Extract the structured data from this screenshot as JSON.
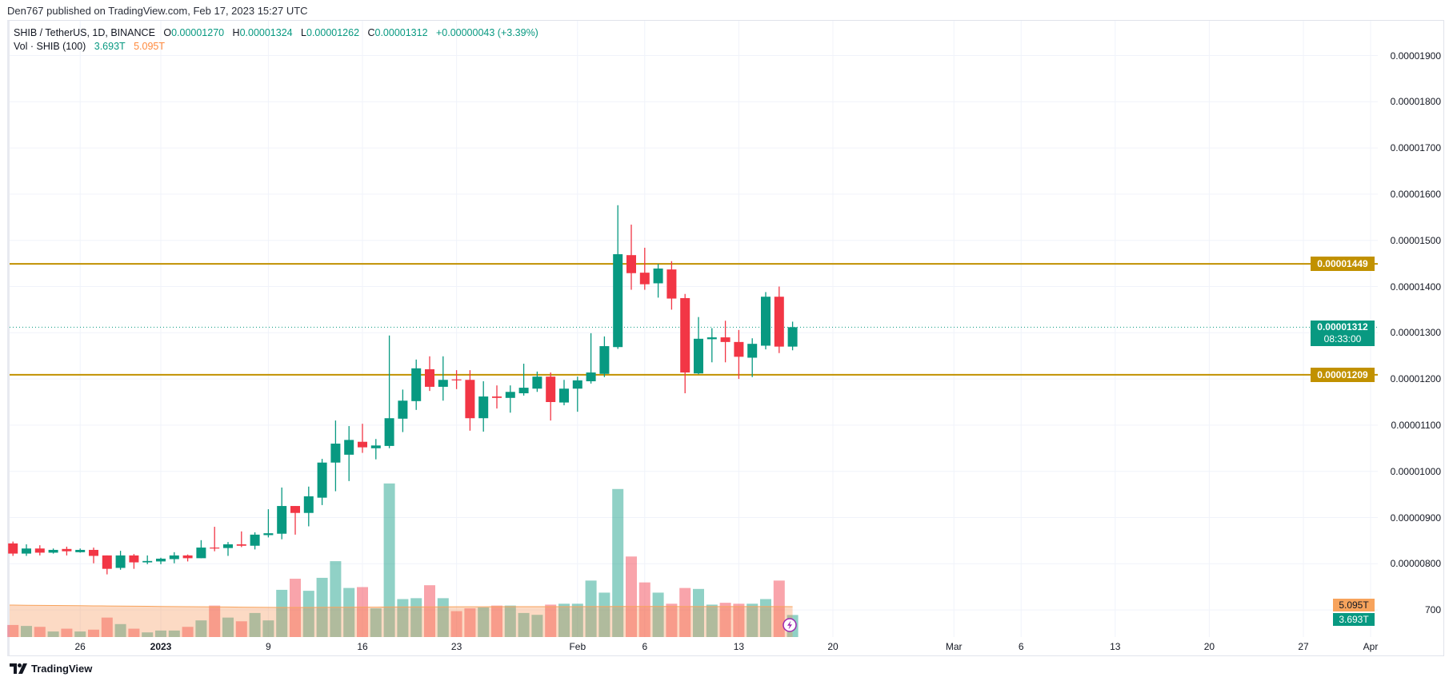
{
  "published": "Den767 published on TradingView.com, Feb 17, 2023 15:27 UTC",
  "legend": {
    "symbol": "SHIB / TetherUS, 1D, BINANCE",
    "o_label": "O",
    "o_value": "0.00001270",
    "h_label": "H",
    "h_value": "0.00001324",
    "l_label": "L",
    "l_value": "0.00001262",
    "c_label": "C",
    "c_value": "0.00001312",
    "change": "+0.00000043 (+3.39%)",
    "vol_label": "Vol · SHIB (100)",
    "vol_value": "3.693T",
    "vol_ma_value": "5.095T"
  },
  "colors": {
    "up": "#089981",
    "down": "#f23645",
    "level_line": "#c19100",
    "vol_ma": "#f7a35c",
    "alert": "#9c27b0"
  },
  "price_axis": {
    "labels": [
      "0.00001900",
      "0.00001800",
      "0.00001700",
      "0.00001600",
      "0.00001500",
      "0.00001400",
      "0.00001300",
      "0.00001200",
      "0.00001100",
      "0.00001000",
      "0.00000900",
      "0.00000800",
      "700"
    ],
    "levels": [
      {
        "value": 1.449e-05,
        "label": "0.00001449"
      },
      {
        "value": 1.209e-05,
        "label": "0.00001209"
      }
    ],
    "last_price": {
      "value": 1.312e-05,
      "label": "0.00001312",
      "countdown": "08:33:00"
    },
    "volume_tags": {
      "ma": "5.095T",
      "volume": "3.693T"
    }
  },
  "time_axis": [
    {
      "label": "26",
      "date": "2022-12-26"
    },
    {
      "label": "2023",
      "date": "2023-01-01"
    },
    {
      "label": "9",
      "date": "2023-01-09"
    },
    {
      "label": "16",
      "date": "2023-01-16"
    },
    {
      "label": "23",
      "date": "2023-01-23"
    },
    {
      "label": "Feb",
      "date": "2023-02-01"
    },
    {
      "label": "6",
      "date": "2023-02-06"
    },
    {
      "label": "13",
      "date": "2023-02-13"
    },
    {
      "label": "20",
      "date": "2023-02-20"
    },
    {
      "label": "Mar",
      "date": "2023-03-01"
    },
    {
      "label": "6",
      "date": "2023-03-06"
    },
    {
      "label": "13",
      "date": "2023-03-13"
    },
    {
      "label": "20",
      "date": "2023-03-20"
    },
    {
      "label": "27",
      "date": "2023-03-27"
    },
    {
      "label": "Apr",
      "date": "2023-04-01"
    }
  ],
  "footer": {
    "brand": "TradingView"
  },
  "chart_data": {
    "type": "candlestick",
    "symbol": "SHIB / TetherUS",
    "interval": "1D",
    "exchange": "BINANCE",
    "ylim": [
      6.6e-06,
      1.95e-05
    ],
    "xlim": [
      "2022-12-21",
      "2023-04-04"
    ],
    "grid": true,
    "dates": [
      "2022-12-21",
      "2022-12-22",
      "2022-12-23",
      "2022-12-24",
      "2022-12-25",
      "2022-12-26",
      "2022-12-27",
      "2022-12-28",
      "2022-12-29",
      "2022-12-30",
      "2022-12-31",
      "2023-01-01",
      "2023-01-02",
      "2023-01-03",
      "2023-01-04",
      "2023-01-05",
      "2023-01-06",
      "2023-01-07",
      "2023-01-08",
      "2023-01-09",
      "2023-01-10",
      "2023-01-11",
      "2023-01-12",
      "2023-01-13",
      "2023-01-14",
      "2023-01-15",
      "2023-01-16",
      "2023-01-17",
      "2023-01-18",
      "2023-01-19",
      "2023-01-20",
      "2023-01-21",
      "2023-01-22",
      "2023-01-23",
      "2023-01-24",
      "2023-01-25",
      "2023-01-26",
      "2023-01-27",
      "2023-01-28",
      "2023-01-29",
      "2023-01-30",
      "2023-01-31",
      "2023-02-01",
      "2023-02-02",
      "2023-02-03",
      "2023-02-04",
      "2023-02-05",
      "2023-02-06",
      "2023-02-07",
      "2023-02-08",
      "2023-02-09",
      "2023-02-10",
      "2023-02-11",
      "2023-02-12",
      "2023-02-13",
      "2023-02-14",
      "2023-02-15",
      "2023-02-16",
      "2023-02-17"
    ],
    "ohlc": [
      [
        8.44e-06,
        8.48e-06,
        8.17e-06,
        8.22e-06
      ],
      [
        8.22e-06,
        8.42e-06,
        8.17e-06,
        8.33e-06
      ],
      [
        8.33e-06,
        8.4e-06,
        8.18e-06,
        8.24e-06
      ],
      [
        8.24e-06,
        8.33e-06,
        8.22e-06,
        8.3e-06
      ],
      [
        8.32e-06,
        8.37e-06,
        8.18e-06,
        8.27e-06
      ],
      [
        8.25e-06,
        8.33e-06,
        8.24e-06,
        8.3e-06
      ],
      [
        8.3e-06,
        8.35e-06,
        8.01e-06,
        8.17e-06
      ],
      [
        8.18e-06,
        8.18e-06,
        7.77e-06,
        7.89e-06
      ],
      [
        7.91e-06,
        8.28e-06,
        7.87e-06,
        8.18e-06
      ],
      [
        8.18e-06,
        8.21e-06,
        7.89e-06,
        8.03e-06
      ],
      [
        8.03e-06,
        8.18e-06,
        7.99e-06,
        8.06e-06
      ],
      [
        8.05e-06,
        8.13e-06,
        7.99e-06,
        8.11e-06
      ],
      [
        8.1e-06,
        8.25e-06,
        8.01e-06,
        8.18e-06
      ],
      [
        8.18e-06,
        8.2e-06,
        8.05e-06,
        8.12e-06
      ],
      [
        8.12e-06,
        8.51e-06,
        8.12e-06,
        8.35e-06
      ],
      [
        8.35e-06,
        8.8e-06,
        8.27e-06,
        8.34e-06
      ],
      [
        8.34e-06,
        8.47e-06,
        8.17e-06,
        8.42e-06
      ],
      [
        8.42e-06,
        8.7e-06,
        8.36e-06,
        8.39e-06
      ],
      [
        8.39e-06,
        8.68e-06,
        8.31e-06,
        8.63e-06
      ],
      [
        8.62e-06,
        9.18e-06,
        8.57e-06,
        8.66e-06
      ],
      [
        8.65e-06,
        9.65e-06,
        8.53e-06,
        9.25e-06
      ],
      [
        9.25e-06,
        9.25e-06,
        8.63e-06,
        9.1e-06
      ],
      [
        9.1e-06,
        9.67e-06,
        8.81e-06,
        9.46e-06
      ],
      [
        9.43e-06,
        1.027e-05,
        9.27e-06,
        1.019e-05
      ],
      [
        1.019e-05,
        1.11e-05,
        9.57e-06,
        1.06e-05
      ],
      [
        1.036e-05,
        1.098e-05,
        9.79e-06,
        1.068e-05
      ],
      [
        1.064e-05,
        1.103e-05,
        1.04e-05,
        1.052e-05
      ],
      [
        1.05e-05,
        1.07e-05,
        1.026e-05,
        1.056e-05
      ],
      [
        1.055e-05,
        1.294e-05,
        1.05e-05,
        1.115e-05
      ],
      [
        1.114e-05,
        1.177e-05,
        1.085e-05,
        1.153e-05
      ],
      [
        1.152e-05,
        1.242e-05,
        1.133e-05,
        1.223e-05
      ],
      [
        1.221e-05,
        1.249e-05,
        1.174e-05,
        1.183e-05
      ],
      [
        1.183e-05,
        1.249e-05,
        1.153e-05,
        1.198e-05
      ],
      [
        1.199e-05,
        1.219e-05,
        1.178e-05,
        1.197e-05
      ],
      [
        1.198e-05,
        1.219e-05,
        1.088e-05,
        1.115e-05
      ],
      [
        1.115e-05,
        1.195e-05,
        1.086e-05,
        1.162e-05
      ],
      [
        1.162e-05,
        1.186e-05,
        1.136e-05,
        1.159e-05
      ],
      [
        1.159e-05,
        1.186e-05,
        1.127e-05,
        1.172e-05
      ],
      [
        1.169e-05,
        1.233e-05,
        1.164e-05,
        1.181e-05
      ],
      [
        1.179e-05,
        1.216e-05,
        1.172e-05,
        1.205e-05
      ],
      [
        1.205e-05,
        1.214e-05,
        1.11e-05,
        1.15e-05
      ],
      [
        1.149e-05,
        1.198e-05,
        1.143e-05,
        1.179e-05
      ],
      [
        1.179e-05,
        1.205e-05,
        1.129e-05,
        1.197e-05
      ],
      [
        1.195e-05,
        1.299e-05,
        1.19e-05,
        1.214e-05
      ],
      [
        1.211e-05,
        1.292e-05,
        1.204e-05,
        1.271e-05
      ],
      [
        1.269e-05,
        1.576e-05,
        1.265e-05,
        1.47e-05
      ],
      [
        1.468e-05,
        1.534e-05,
        1.393e-05,
        1.429e-05
      ],
      [
        1.43e-05,
        1.484e-05,
        1.393e-05,
        1.405e-05
      ],
      [
        1.407e-05,
        1.449e-05,
        1.376e-05,
        1.439e-05
      ],
      [
        1.437e-05,
        1.455e-05,
        1.35e-05,
        1.374e-05
      ],
      [
        1.375e-05,
        1.384e-05,
        1.169e-05,
        1.214e-05
      ],
      [
        1.212e-05,
        1.334e-05,
        1.21e-05,
        1.287e-05
      ],
      [
        1.286e-05,
        1.31e-05,
        1.236e-05,
        1.29e-05
      ],
      [
        1.29e-05,
        1.326e-05,
        1.236e-05,
        1.28e-05
      ],
      [
        1.28e-05,
        1.306e-05,
        1.2e-05,
        1.248e-05
      ],
      [
        1.246e-05,
        1.288e-05,
        1.204e-05,
        1.276e-05
      ],
      [
        1.272e-05,
        1.388e-05,
        1.264e-05,
        1.378e-05
      ],
      [
        1.378e-05,
        1.4e-05,
        1.256e-05,
        1.27e-05
      ],
      [
        1.27e-05,
        1.324e-05,
        1.262e-05,
        1.312e-05
      ]
    ],
    "volume_T": [
      2.02,
      1.86,
      1.71,
      0.93,
      1.4,
      0.93,
      1.24,
      3.26,
      2.17,
      1.4,
      0.78,
      1.09,
      1.09,
      1.71,
      2.79,
      5.27,
      3.26,
      2.64,
      4.03,
      2.79,
      7.91,
      9.77,
      7.75,
      9.92,
      12.71,
      8.22,
      8.37,
      4.81,
      25.73,
      6.36,
      6.51,
      8.68,
      6.51,
      4.34,
      4.81,
      4.96,
      5.27,
      5.27,
      4.03,
      3.72,
      5.43,
      5.58,
      5.58,
      9.46,
      7.44,
      24.8,
      13.49,
      9.15,
      7.44,
      5.58,
      8.22,
      8.06,
      5.43,
      5.74,
      5.58,
      5.58,
      6.36,
      9.46,
      3.693
    ],
    "volume_ma_T": [
      5.35,
      5.33,
      5.31,
      5.29,
      5.27,
      5.25,
      5.23,
      5.21,
      5.19,
      5.17,
      5.15,
      5.13,
      5.11,
      5.09,
      5.07,
      5.05,
      5.03,
      5.01,
      4.99,
      4.97,
      4.95,
      4.95,
      4.96,
      4.97,
      4.98,
      4.99,
      5.0,
      5.01,
      5.03,
      5.04,
      5.05,
      5.06,
      5.06,
      5.07,
      5.07,
      5.07,
      5.08,
      5.08,
      5.08,
      5.08,
      5.09,
      5.09,
      5.09,
      5.1,
      5.1,
      5.12,
      5.13,
      5.13,
      5.12,
      5.12,
      5.11,
      5.11,
      5.1,
      5.1,
      5.1,
      5.1,
      5.1,
      5.1,
      5.095
    ]
  }
}
